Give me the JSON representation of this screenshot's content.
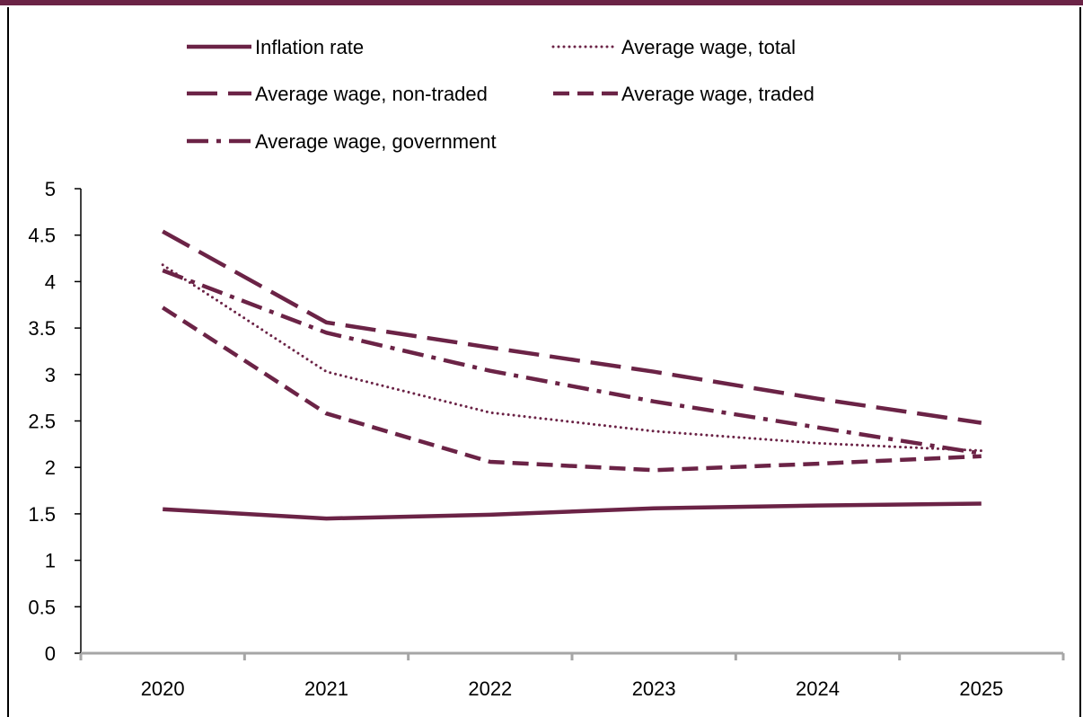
{
  "chart_data": {
    "type": "line",
    "categories": [
      "2020",
      "2021",
      "2022",
      "2023",
      "2024",
      "2025"
    ],
    "ylim": [
      0,
      5
    ],
    "y_ticks": [
      "0",
      "0.5",
      "1",
      "1.5",
      "2",
      "2.5",
      "3",
      "3.5",
      "4",
      "4.5",
      "5"
    ],
    "grid": false,
    "legend_position": "top",
    "line_color": "#6b2346",
    "axis_color": "#a6a6a6",
    "series": [
      {
        "name": "Inflation rate",
        "style": "solid",
        "values": [
          1.55,
          1.45,
          1.49,
          1.56,
          1.59,
          1.61
        ]
      },
      {
        "name": "Average wage, total",
        "style": "dotted",
        "values": [
          4.18,
          3.03,
          2.59,
          2.39,
          2.26,
          2.18
        ]
      },
      {
        "name": "Average wage, non-traded",
        "style": "long-dash",
        "values": [
          4.54,
          3.56,
          3.29,
          3.03,
          2.74,
          2.48
        ]
      },
      {
        "name": "Average wage, traded",
        "style": "dash",
        "values": [
          3.72,
          2.58,
          2.06,
          1.97,
          2.04,
          2.12
        ]
      },
      {
        "name": "Average wage, government",
        "style": "dash-dot",
        "values": [
          4.12,
          3.45,
          3.04,
          2.71,
          2.43,
          2.15
        ]
      }
    ]
  }
}
